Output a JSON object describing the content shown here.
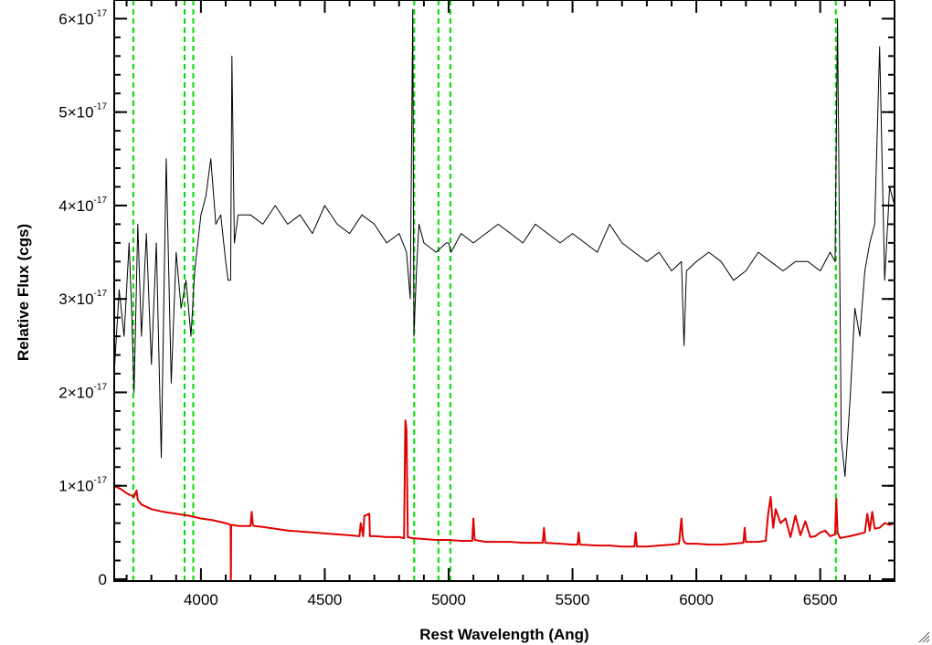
{
  "chart_data": {
    "type": "line",
    "xlabel": "Rest Wavelength (Ang)",
    "ylabel": "Relative Flux (cgs)",
    "xlim": [
      3650,
      6800
    ],
    "ylim": [
      -2e-19,
      6.2e-17
    ],
    "x_ticks": [
      4000,
      4500,
      5000,
      5500,
      6000,
      6500
    ],
    "x_tick_labels": [
      "4000",
      "4500",
      "5000",
      "5500",
      "6000",
      "6500"
    ],
    "y_ticks": [
      0,
      1e-17,
      2e-17,
      3e-17,
      4e-17,
      5e-17,
      6e-17
    ],
    "y_tick_labels": [
      {
        "mantissa": "0",
        "exponent": ""
      },
      {
        "mantissa": "1×10",
        "exponent": "-17"
      },
      {
        "mantissa": "2×10",
        "exponent": "-17"
      },
      {
        "mantissa": "3×10",
        "exponent": "-17"
      },
      {
        "mantissa": "4×10",
        "exponent": "-17"
      },
      {
        "mantissa": "5×10",
        "exponent": "-17"
      },
      {
        "mantissa": "6×10",
        "exponent": "-17"
      }
    ],
    "grid": false,
    "series": [
      {
        "color": "#000000",
        "style": "solid",
        "x": [
          3650,
          3670,
          3690,
          3710,
          3720,
          3730,
          3745,
          3760,
          3780,
          3800,
          3820,
          3840,
          3860,
          3880,
          3900,
          3920,
          3940,
          3960,
          3975,
          4000,
          4020,
          4040,
          4060,
          4080,
          4100,
          4110,
          4120,
          4125,
          4135,
          4150,
          4200,
          4250,
          4300,
          4350,
          4400,
          4450,
          4500,
          4550,
          4600,
          4650,
          4700,
          4750,
          4800,
          4830,
          4845,
          4855,
          4860,
          4870,
          4880,
          4900,
          4950,
          4990,
          5000,
          5010,
          5050,
          5100,
          5150,
          5200,
          5250,
          5300,
          5350,
          5400,
          5450,
          5500,
          5550,
          5600,
          5650,
          5700,
          5750,
          5800,
          5850,
          5900,
          5940,
          5950,
          5960,
          6000,
          6050,
          6100,
          6150,
          6200,
          6250,
          6300,
          6350,
          6400,
          6450,
          6500,
          6540,
          6560,
          6570,
          6585,
          6600,
          6620,
          6640,
          6660,
          6680,
          6700,
          6720,
          6740,
          6760,
          6780,
          6800
        ],
        "y": [
          2.2e-17,
          3.1e-17,
          2.6e-17,
          3.6e-17,
          2.9e-17,
          2e-17,
          3.8e-17,
          2.6e-17,
          3.7e-17,
          2.3e-17,
          3.6e-17,
          1.3e-17,
          4.5e-17,
          2.1e-17,
          3.5e-17,
          2.9e-17,
          3.2e-17,
          2.6e-17,
          3.3e-17,
          3.9e-17,
          4.1e-17,
          4.5e-17,
          3.8e-17,
          3.9e-17,
          3.4e-17,
          3.2e-17,
          3.2e-17,
          5.6e-17,
          3.6e-17,
          3.9e-17,
          3.9e-17,
          3.8e-17,
          4e-17,
          3.8e-17,
          3.9e-17,
          3.7e-17,
          4e-17,
          3.8e-17,
          3.7e-17,
          3.9e-17,
          3.8e-17,
          3.6e-17,
          3.7e-17,
          3.5e-17,
          3e-17,
          6.1e-17,
          2.6e-17,
          3.3e-17,
          3.8e-17,
          3.6e-17,
          3.5e-17,
          3.6e-17,
          3.6e-17,
          3.5e-17,
          3.7e-17,
          3.6e-17,
          3.7e-17,
          3.8e-17,
          3.7e-17,
          3.6e-17,
          3.8e-17,
          3.7e-17,
          3.6e-17,
          3.7e-17,
          3.6e-17,
          3.5e-17,
          3.8e-17,
          3.6e-17,
          3.5e-17,
          3.4e-17,
          3.5e-17,
          3.3e-17,
          3.4e-17,
          2.5e-17,
          3.3e-17,
          3.4e-17,
          3.5e-17,
          3.4e-17,
          3.2e-17,
          3.3e-17,
          3.5e-17,
          3.4e-17,
          3.3e-17,
          3.4e-17,
          3.4e-17,
          3.3e-17,
          3.5e-17,
          3.4e-17,
          6e-17,
          1.5e-17,
          1.1e-17,
          1.9e-17,
          2.9e-17,
          2.6e-17,
          3.3e-17,
          3.6e-17,
          3.8e-17,
          5.7e-17,
          3.2e-17,
          4.2e-17,
          4e-17
        ]
      },
      {
        "color": "#e00000",
        "style": "solid",
        "x": [
          3650,
          3680,
          3700,
          3730,
          3740,
          3745,
          3760,
          3800,
          3850,
          3900,
          3950,
          4000,
          4050,
          4100,
          4110,
          4120,
          4121,
          4122,
          4130,
          4150,
          4200,
          4205,
          4210,
          4215,
          4250,
          4300,
          4350,
          4400,
          4450,
          4500,
          4550,
          4600,
          4640,
          4645,
          4655,
          4660,
          4680,
          4682,
          4700,
          4702,
          4750,
          4800,
          4820,
          4825,
          4830,
          4835,
          4850,
          4900,
          4950,
          5000,
          5050,
          5095,
          5100,
          5105,
          5150,
          5200,
          5250,
          5300,
          5350,
          5380,
          5385,
          5390,
          5450,
          5500,
          5520,
          5525,
          5530,
          5600,
          5650,
          5700,
          5750,
          5755,
          5760,
          5800,
          5850,
          5900,
          5930,
          5940,
          5945,
          5950,
          5960,
          6000,
          6050,
          6100,
          6150,
          6190,
          6195,
          6200,
          6250,
          6280,
          6290,
          6300,
          6310,
          6320,
          6340,
          6360,
          6380,
          6400,
          6420,
          6440,
          6460,
          6480,
          6500,
          6520,
          6540,
          6560,
          6565,
          6570,
          6580,
          6600,
          6620,
          6650,
          6680,
          6690,
          6700,
          6710,
          6720,
          6740,
          6760,
          6780,
          6800
        ],
        "y": [
          1e-17,
          9.6e-18,
          9.2e-18,
          8.8e-18,
          9.5e-18,
          8.5e-18,
          8e-18,
          7.5e-18,
          7.2e-18,
          7e-18,
          6.8e-18,
          6.5e-18,
          6.3e-18,
          6e-18,
          5.9e-18,
          5.8e-18,
          -1e-18,
          5.8e-18,
          5.8e-18,
          5.7e-18,
          5.7e-18,
          7.2e-18,
          5.8e-18,
          5.7e-18,
          5.6e-18,
          5.4e-18,
          5.2e-18,
          5.1e-18,
          5e-18,
          4.9e-18,
          4.8e-18,
          4.7e-18,
          4.6e-18,
          6e-18,
          4.6e-18,
          6.8e-18,
          7e-18,
          4.6e-18,
          4.6e-18,
          4.6e-18,
          4.5e-18,
          4.5e-18,
          4.4e-18,
          1.7e-17,
          1.6e-17,
          4.5e-18,
          4.4e-18,
          4.3e-18,
          4.2e-18,
          4.2e-18,
          4.1e-18,
          4.1e-18,
          6.5e-18,
          4.2e-18,
          4e-18,
          4e-18,
          4e-18,
          3.9e-18,
          3.9e-18,
          3.9e-18,
          5.5e-18,
          3.9e-18,
          3.8e-18,
          3.7e-18,
          3.7e-18,
          5e-18,
          3.7e-18,
          3.6e-18,
          3.6e-18,
          3.5e-18,
          3.5e-18,
          5e-18,
          3.5e-18,
          3.5e-18,
          3.6e-18,
          3.7e-18,
          3.8e-18,
          6.5e-18,
          4.5e-18,
          4e-18,
          3.8e-18,
          3.8e-18,
          3.7e-18,
          3.7e-18,
          3.8e-18,
          3.9e-18,
          5.5e-18,
          4e-18,
          4e-18,
          4.1e-18,
          7e-18,
          8.8e-18,
          5.5e-18,
          7.5e-18,
          6e-18,
          6.5e-18,
          4.5e-18,
          6.8e-18,
          4.7e-18,
          6.2e-18,
          4.5e-18,
          4.6e-18,
          5e-18,
          5.2e-18,
          4.6e-18,
          4.8e-18,
          8.6e-18,
          5e-18,
          4.4e-18,
          4.5e-18,
          4.6e-18,
          4.8e-18,
          5e-18,
          7e-18,
          5.2e-18,
          7.2e-18,
          5.4e-18,
          5.5e-18,
          6e-18,
          5.8e-18,
          6e-18
        ]
      }
    ],
    "vertical_lines": [
      {
        "x": 3727,
        "color": "#00dd00",
        "style": "dashed"
      },
      {
        "x": 3934,
        "color": "#00dd00",
        "style": "dashed"
      },
      {
        "x": 3969,
        "color": "#00dd00",
        "style": "dashed"
      },
      {
        "x": 4861,
        "color": "#00dd00",
        "style": "dashed"
      },
      {
        "x": 4959,
        "color": "#00dd00",
        "style": "dashed"
      },
      {
        "x": 5007,
        "color": "#00dd00",
        "style": "dashed"
      },
      {
        "x": 6563,
        "color": "#00dd00",
        "style": "dashed"
      }
    ]
  }
}
